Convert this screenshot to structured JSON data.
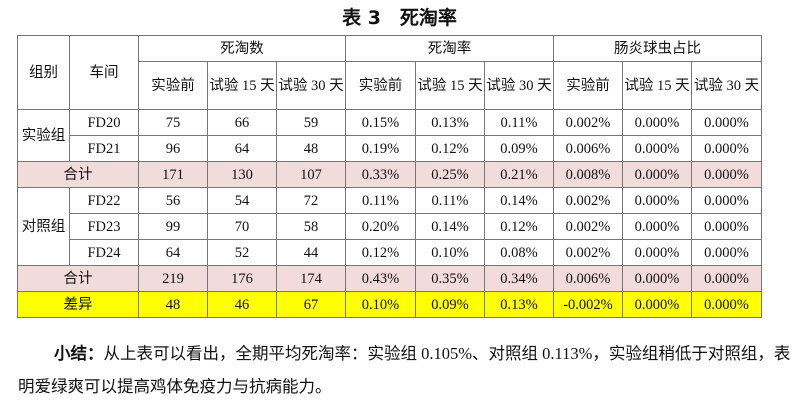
{
  "title": "表 3　死淘率",
  "header": {
    "group": "组别",
    "workshop": "车间",
    "deaths": "死淘数",
    "rate": "死淘率",
    "coccidia": "肠炎球虫占比",
    "sub": [
      "实验前",
      "试验 15 天",
      "试验 30 天"
    ]
  },
  "rows": [
    {
      "type": "data",
      "group": "实验组",
      "workshop": "FD20",
      "values": [
        "75",
        "66",
        "59",
        "0.15%",
        "0.13%",
        "0.11%",
        "0.002%",
        "0.000%",
        "0.000%"
      ]
    },
    {
      "type": "data",
      "workshop": "FD21",
      "values": [
        "96",
        "64",
        "48",
        "0.19%",
        "0.12%",
        "0.09%",
        "0.006%",
        "0.000%",
        "0.000%"
      ]
    },
    {
      "type": "total",
      "label": "合计",
      "values": [
        "171",
        "130",
        "107",
        "0.33%",
        "0.25%",
        "0.21%",
        "0.008%",
        "0.000%",
        "0.000%"
      ]
    },
    {
      "type": "data",
      "group": "对照组",
      "workshop": "FD22",
      "values": [
        "56",
        "54",
        "72",
        "0.11%",
        "0.11%",
        "0.14%",
        "0.002%",
        "0.000%",
        "0.000%"
      ]
    },
    {
      "type": "data",
      "workshop": "FD23",
      "values": [
        "99",
        "70",
        "58",
        "0.20%",
        "0.14%",
        "0.12%",
        "0.002%",
        "0.000%",
        "0.000%"
      ]
    },
    {
      "type": "data",
      "workshop": "FD24",
      "values": [
        "64",
        "52",
        "44",
        "0.12%",
        "0.10%",
        "0.08%",
        "0.002%",
        "0.000%",
        "0.000%"
      ]
    },
    {
      "type": "total",
      "label": "合计",
      "values": [
        "219",
        "176",
        "174",
        "0.43%",
        "0.35%",
        "0.34%",
        "0.006%",
        "0.000%",
        "0.000%"
      ]
    },
    {
      "type": "diff",
      "label": "差异",
      "values": [
        "48",
        "46",
        "67",
        "0.10%",
        "0.09%",
        "0.13%",
        "-0.002%",
        "0.000%",
        "0.000%"
      ]
    }
  ],
  "colors": {
    "total_row": "#f2dcdb",
    "diff_row": "#ffff00"
  },
  "summary": {
    "label": "小结：",
    "text": "从上表可以看出，全期平均死淘率：实验组 0.105%、对照组 0.113%，实验组稍低于对照组，表明爱绿爽可以提高鸡体免疫力与抗病能力。"
  }
}
